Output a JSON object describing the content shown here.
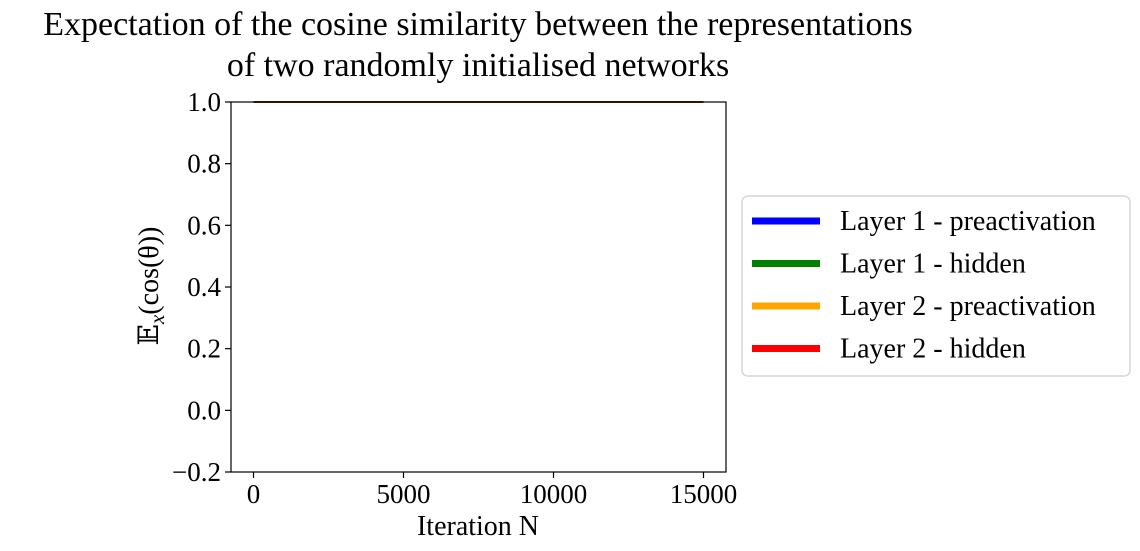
{
  "chart_data": {
    "type": "line",
    "title_lines": [
      "Expectation of the cosine similarity between the representations",
      "of  two randomly initialised networks"
    ],
    "xlabel": "Iteration N",
    "ylabel": "E_x(cos(θ))",
    "ylabel_parts": {
      "symbol": "𝔼",
      "subscript": "x",
      "argument": "(cos(θ))"
    },
    "xlim": [
      -750,
      15750
    ],
    "ylim": [
      -0.2,
      1.0
    ],
    "xticks": [
      0,
      5000,
      10000,
      15000
    ],
    "xtick_labels": [
      "0",
      "5000",
      "10000",
      "15000"
    ],
    "yticks": [
      -0.2,
      0.0,
      0.2,
      0.4,
      0.6,
      0.8,
      1.0
    ],
    "ytick_labels": [
      "−0.2",
      "0.0",
      "0.2",
      "0.4",
      "0.6",
      "0.8",
      "1.0"
    ],
    "grid": false,
    "legend_position": "right-outside",
    "series": [
      {
        "name": "Layer 1 - preactivation",
        "color": "#0000ff",
        "x": [
          0,
          15000
        ],
        "values": [
          1.0,
          1.0
        ]
      },
      {
        "name": "Layer 1 - hidden",
        "color": "#008000",
        "x": [
          0,
          15000
        ],
        "values": [
          1.0,
          1.0
        ]
      },
      {
        "name": "Layer 2 - preactivation",
        "color": "#ffa500",
        "x": [
          0,
          15000
        ],
        "values": [
          1.0,
          1.0
        ]
      },
      {
        "name": "Layer 2 - hidden",
        "color": "#ff0000",
        "x": [
          0,
          15000
        ],
        "values": [
          1.0,
          1.0
        ]
      }
    ],
    "overlay_line": {
      "color": "#000000",
      "x": [
        0,
        15000
      ],
      "values": [
        1.0,
        1.0
      ]
    }
  }
}
